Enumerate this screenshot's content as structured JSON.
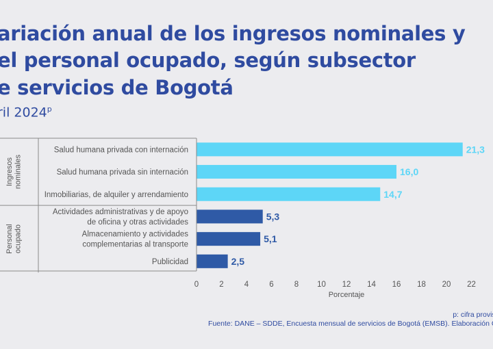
{
  "title_lines": [
    "ariación anual de los ingresos nominales y",
    "el personal ocupado, según subsector",
    "e servicios de Bogotá"
  ],
  "subtitle": "ril 2024",
  "subtitle_sup": "p",
  "note": "p: cifra provisi",
  "source": "Fuente: DANE – SDDE, Encuesta mensual de servicios de Bogotá (EMSB). Elaboración O",
  "colors": {
    "ingresos": "#5dd6f7",
    "personal": "#2f5aa6",
    "title": "#2f4ba0",
    "label": "#555555"
  },
  "chart_data": {
    "type": "bar",
    "orientation": "horizontal",
    "title": "ariación anual de los ingresos nominales y el personal ocupado, según subsector e servicios de Bogotá",
    "xlabel": "Porcentaje",
    "xlim": [
      0,
      24
    ],
    "xticks": [
      "0",
      "2",
      "4",
      "6",
      "8",
      "10",
      "12",
      "14",
      "16",
      "18",
      "20",
      "22",
      "2"
    ],
    "groups": [
      {
        "name": "Ingresos nominales",
        "label_lines": [
          "Ingresos",
          "nominales"
        ],
        "color": "#5dd6f7",
        "bars": [
          {
            "label_lines": [
              "Salud humana privada con internación"
            ],
            "value": 21.3,
            "value_label": "21,3"
          },
          {
            "label_lines": [
              "Salud humana privada sin internación"
            ],
            "value": 16.0,
            "value_label": "16,0"
          },
          {
            "label_lines": [
              "Inmobiliarias,  de alquiler y arrendamiento"
            ],
            "value": 14.7,
            "value_label": "14,7"
          }
        ]
      },
      {
        "name": "Personal ocupado",
        "label_lines": [
          "Personal",
          "ocupado"
        ],
        "color": "#2f5aa6",
        "bars": [
          {
            "label_lines": [
              "Actividades administrativas y de apoyo",
              "de oficina y otras actividades"
            ],
            "value": 5.3,
            "value_label": "5,3"
          },
          {
            "label_lines": [
              "Almacenamiento y actividades",
              "complementarias al transporte"
            ],
            "value": 5.1,
            "value_label": "5,1"
          },
          {
            "label_lines": [
              "Publicidad"
            ],
            "value": 2.5,
            "value_label": "2,5"
          }
        ]
      }
    ]
  }
}
